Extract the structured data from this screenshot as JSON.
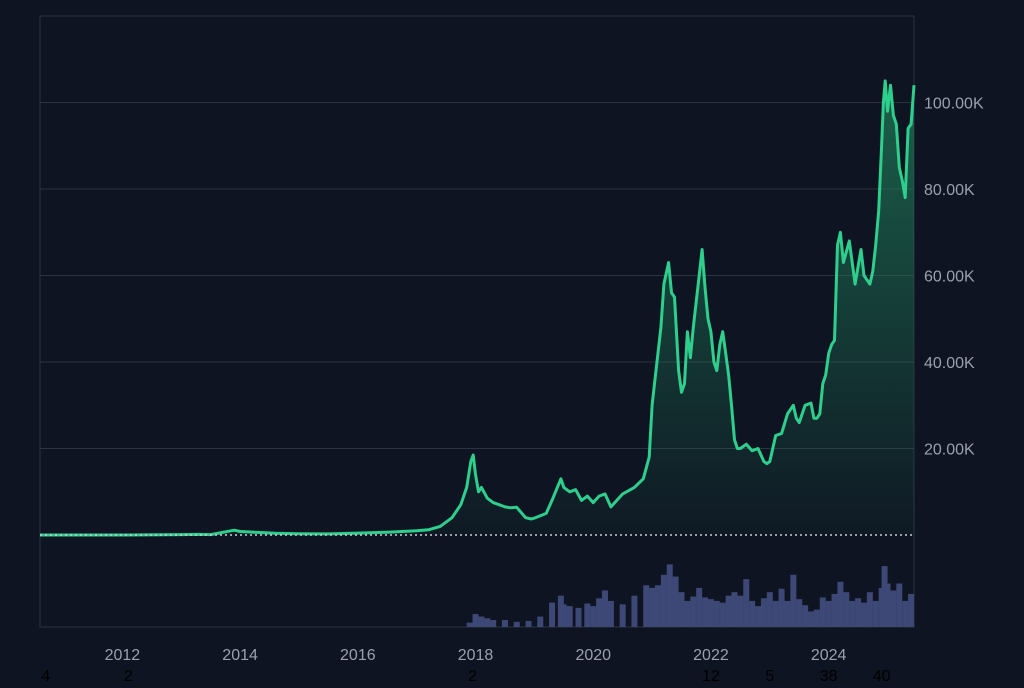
{
  "colors": {
    "background": "#0e1421",
    "price_line": "#2ecf8c",
    "price_fill_top": "#1f7a58",
    "volume": "#3d4876",
    "grid": "#2b3342",
    "axis_text": "#9aa0ae",
    "baseline_dots": "#c8ccd4",
    "bottom_labels": "#000000"
  },
  "chart_data": {
    "type": "area",
    "x_unit": "year",
    "xlim": [
      2010.6,
      2025.45
    ],
    "ylim": [
      0,
      120000
    ],
    "grid": true,
    "y_axis_side": "right",
    "y_ticks": [
      {
        "value": 20000,
        "label": "20.00K"
      },
      {
        "value": 40000,
        "label": "40.00K"
      },
      {
        "value": 60000,
        "label": "60.00K"
      },
      {
        "value": 80000,
        "label": "80.00K"
      },
      {
        "value": 100000,
        "label": "100.00K"
      }
    ],
    "x_ticks": [
      {
        "value": 2012,
        "label": "2012"
      },
      {
        "value": 2014,
        "label": "2014"
      },
      {
        "value": 2016,
        "label": "2016"
      },
      {
        "value": 2018,
        "label": "2018"
      },
      {
        "value": 2020,
        "label": "2020"
      },
      {
        "value": 2022,
        "label": "2022"
      },
      {
        "value": 2024,
        "label": "2024"
      }
    ],
    "bottom_labels": [
      {
        "x": 2010.7,
        "label": "4"
      },
      {
        "x": 2012.1,
        "label": "2"
      },
      {
        "x": 2017.95,
        "label": "2"
      },
      {
        "x": 2022.0,
        "label": "12"
      },
      {
        "x": 2023.0,
        "label": "5"
      },
      {
        "x": 2024.0,
        "label": "38"
      },
      {
        "x": 2024.9,
        "label": "40"
      }
    ],
    "series": [
      {
        "type": "line",
        "x": [
          2010.6,
          2011.5,
          2012.0,
          2013.0,
          2013.3,
          2013.5,
          2013.9,
          2014.0,
          2014.3,
          2014.6,
          2015.0,
          2015.5,
          2016.0,
          2016.5,
          2017.0,
          2017.2,
          2017.4,
          2017.6,
          2017.75,
          2017.85,
          2017.92,
          2017.96,
          2018.0,
          2018.05,
          2018.1,
          2018.2,
          2018.3,
          2018.4,
          2018.5,
          2018.6,
          2018.7,
          2018.85,
          2018.95,
          2019.0,
          2019.2,
          2019.3,
          2019.45,
          2019.5,
          2019.6,
          2019.7,
          2019.8,
          2019.9,
          2020.0,
          2020.1,
          2020.2,
          2020.3,
          2020.5,
          2020.7,
          2020.85,
          2020.95,
          2021.0,
          2021.05,
          2021.15,
          2021.2,
          2021.28,
          2021.33,
          2021.38,
          2021.45,
          2021.5,
          2021.55,
          2021.6,
          2021.65,
          2021.7,
          2021.8,
          2021.85,
          2021.9,
          2021.95,
          2022.0,
          2022.05,
          2022.1,
          2022.15,
          2022.2,
          2022.25,
          2022.3,
          2022.35,
          2022.4,
          2022.45,
          2022.5,
          2022.6,
          2022.7,
          2022.8,
          2022.9,
          2022.95,
          2023.0,
          2023.1,
          2023.2,
          2023.3,
          2023.4,
          2023.45,
          2023.5,
          2023.6,
          2023.7,
          2023.75,
          2023.8,
          2023.85,
          2023.9,
          2023.95,
          2024.0,
          2024.05,
          2024.1,
          2024.15,
          2024.2,
          2024.25,
          2024.35,
          2024.45,
          2024.55,
          2024.6,
          2024.7,
          2024.75,
          2024.8,
          2024.85,
          2024.9,
          2024.93,
          2024.96,
          2025.0,
          2025.05,
          2025.1,
          2025.15,
          2025.2,
          2025.25,
          2025.3,
          2025.35,
          2025.4,
          2025.45
        ],
        "y": [
          0,
          2,
          5,
          100,
          150,
          100,
          1100,
          800,
          600,
          400,
          300,
          250,
          430,
          650,
          1000,
          1200,
          2000,
          4000,
          7000,
          11000,
          17000,
          18500,
          14000,
          10000,
          11000,
          8500,
          7500,
          7000,
          6500,
          6300,
          6400,
          4000,
          3700,
          3900,
          5000,
          8000,
          13000,
          11000,
          10000,
          10500,
          8000,
          9000,
          7500,
          9000,
          9500,
          6500,
          9500,
          11000,
          13000,
          18000,
          30000,
          36000,
          48000,
          58000,
          63000,
          56000,
          55000,
          38000,
          33000,
          35000,
          47000,
          41000,
          48000,
          60000,
          66000,
          57000,
          50000,
          47000,
          40000,
          38000,
          44000,
          47000,
          42000,
          37000,
          30000,
          22000,
          20000,
          20000,
          21000,
          19500,
          20000,
          17000,
          16500,
          17000,
          23000,
          23500,
          28000,
          30000,
          27000,
          26000,
          30000,
          30500,
          27000,
          27000,
          28000,
          35000,
          37000,
          42000,
          44000,
          45000,
          67000,
          70000,
          63000,
          68000,
          58000,
          66000,
          60000,
          58000,
          61000,
          67000,
          75000,
          90000,
          100000,
          105000,
          98000,
          104000,
          97000,
          95000,
          85000,
          82000,
          78000,
          94000,
          95000,
          104000
        ]
      },
      {
        "type": "bar",
        "role": "volume",
        "x": [
          2017.9,
          2018.0,
          2018.1,
          2018.2,
          2018.3,
          2018.5,
          2018.7,
          2018.9,
          2019.1,
          2019.3,
          2019.45,
          2019.5,
          2019.6,
          2019.75,
          2019.9,
          2020.0,
          2020.1,
          2020.2,
          2020.3,
          2020.5,
          2020.7,
          2020.9,
          2021.0,
          2021.1,
          2021.2,
          2021.3,
          2021.35,
          2021.4,
          2021.5,
          2021.6,
          2021.7,
          2021.8,
          2021.9,
          2022.0,
          2022.1,
          2022.2,
          2022.3,
          2022.4,
          2022.5,
          2022.6,
          2022.7,
          2022.8,
          2022.9,
          2023.0,
          2023.1,
          2023.2,
          2023.3,
          2023.4,
          2023.5,
          2023.6,
          2023.7,
          2023.8,
          2023.9,
          2024.0,
          2024.1,
          2024.2,
          2024.3,
          2024.4,
          2024.5,
          2024.6,
          2024.7,
          2024.8,
          2024.9,
          2024.95,
          2025.0,
          2025.1,
          2025.2,
          2025.3,
          2025.4
        ],
        "y": [
          0.05,
          0.15,
          0.12,
          0.1,
          0.08,
          0.08,
          0.06,
          0.07,
          0.12,
          0.28,
          0.36,
          0.26,
          0.24,
          0.22,
          0.27,
          0.24,
          0.33,
          0.42,
          0.3,
          0.26,
          0.36,
          0.48,
          0.45,
          0.48,
          0.6,
          0.72,
          0.55,
          0.58,
          0.4,
          0.3,
          0.35,
          0.45,
          0.34,
          0.32,
          0.3,
          0.28,
          0.36,
          0.4,
          0.36,
          0.55,
          0.3,
          0.24,
          0.33,
          0.4,
          0.3,
          0.44,
          0.3,
          0.6,
          0.32,
          0.25,
          0.18,
          0.2,
          0.34,
          0.3,
          0.38,
          0.52,
          0.4,
          0.3,
          0.33,
          0.28,
          0.4,
          0.3,
          0.45,
          0.7,
          0.5,
          0.42,
          0.5,
          0.3,
          0.38
        ]
      }
    ]
  }
}
